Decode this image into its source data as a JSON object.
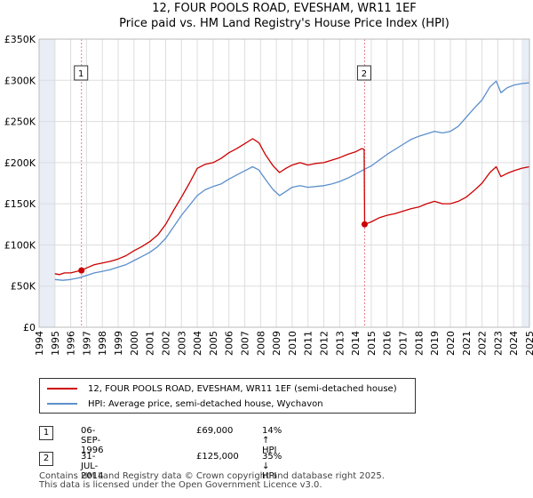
{
  "title_line1": "12, FOUR POOLS ROAD, EVESHAM, WR11 1EF",
  "title_line2": "Price paid vs. HM Land Registry's House Price Index (HPI)",
  "colors": {
    "property": "#cc0000",
    "hpi": "#5b8fcc",
    "grid": "#dddddd",
    "shade": "#e8edf6",
    "marker_line": "#e37b8c"
  },
  "chart_data": {
    "type": "line",
    "x_range": [
      1994,
      2025
    ],
    "y_range": [
      0,
      350000
    ],
    "y_ticks": [
      {
        "v": 0,
        "label": "£0"
      },
      {
        "v": 50000,
        "label": "£50K"
      },
      {
        "v": 100000,
        "label": "£100K"
      },
      {
        "v": 150000,
        "label": "£150K"
      },
      {
        "v": 200000,
        "label": "£200K"
      },
      {
        "v": 250000,
        "label": "£250K"
      },
      {
        "v": 300000,
        "label": "£300K"
      },
      {
        "v": 350000,
        "label": "£350K"
      }
    ],
    "x_ticks": [
      "1994",
      "1995",
      "1996",
      "1997",
      "1998",
      "1999",
      "2000",
      "2001",
      "2002",
      "2003",
      "2004",
      "2005",
      "2006",
      "2007",
      "2008",
      "2009",
      "2010",
      "2011",
      "2012",
      "2013",
      "2014",
      "2015",
      "2016",
      "2017",
      "2018",
      "2019",
      "2020",
      "2021",
      "2022",
      "2023",
      "2024",
      "2025"
    ],
    "shaded_periods": [
      [
        1994,
        1995
      ],
      [
        2024.5,
        2025
      ]
    ],
    "annotations": [
      {
        "label": "1",
        "x": 1996.68,
        "y": 69000
      },
      {
        "label": "2",
        "x": 2014.58,
        "y": 125000
      }
    ],
    "series": [
      {
        "name": "12, FOUR POOLS ROAD, EVESHAM, WR11 1EF (semi-detached house)",
        "color": "#cc0000",
        "points": [
          [
            1995.0,
            65000
          ],
          [
            1995.3,
            64000
          ],
          [
            1995.6,
            66000
          ],
          [
            1996.0,
            66000
          ],
          [
            1996.4,
            68000
          ],
          [
            1996.68,
            69000
          ],
          [
            1997.0,
            72000
          ],
          [
            1997.5,
            76000
          ],
          [
            1998.0,
            78000
          ],
          [
            1998.5,
            80000
          ],
          [
            1999.0,
            83000
          ],
          [
            1999.5,
            87000
          ],
          [
            2000.0,
            93000
          ],
          [
            2000.5,
            98000
          ],
          [
            2001.0,
            104000
          ],
          [
            2001.5,
            112000
          ],
          [
            2002.0,
            125000
          ],
          [
            2002.5,
            142000
          ],
          [
            2003.0,
            158000
          ],
          [
            2003.5,
            175000
          ],
          [
            2004.0,
            193000
          ],
          [
            2004.5,
            198000
          ],
          [
            2005.0,
            200000
          ],
          [
            2005.5,
            205000
          ],
          [
            2006.0,
            212000
          ],
          [
            2006.5,
            217000
          ],
          [
            2007.0,
            223000
          ],
          [
            2007.5,
            229000
          ],
          [
            2007.9,
            224000
          ],
          [
            2008.3,
            210000
          ],
          [
            2008.8,
            196000
          ],
          [
            2009.2,
            188000
          ],
          [
            2009.6,
            193000
          ],
          [
            2010.0,
            197000
          ],
          [
            2010.5,
            200000
          ],
          [
            2011.0,
            197000
          ],
          [
            2011.5,
            199000
          ],
          [
            2012.0,
            200000
          ],
          [
            2012.5,
            203000
          ],
          [
            2013.0,
            206000
          ],
          [
            2013.5,
            210000
          ],
          [
            2014.0,
            213000
          ],
          [
            2014.4,
            217000
          ],
          [
            2014.55,
            216000
          ],
          [
            2014.58,
            125000
          ],
          [
            2015.0,
            128000
          ],
          [
            2015.5,
            133000
          ],
          [
            2016.0,
            136000
          ],
          [
            2016.5,
            138000
          ],
          [
            2017.0,
            141000
          ],
          [
            2017.5,
            144000
          ],
          [
            2018.0,
            146000
          ],
          [
            2018.5,
            150000
          ],
          [
            2019.0,
            153000
          ],
          [
            2019.5,
            150000
          ],
          [
            2020.0,
            150000
          ],
          [
            2020.5,
            153000
          ],
          [
            2021.0,
            158000
          ],
          [
            2021.5,
            166000
          ],
          [
            2022.0,
            175000
          ],
          [
            2022.5,
            188000
          ],
          [
            2022.9,
            195000
          ],
          [
            2023.2,
            183000
          ],
          [
            2023.6,
            187000
          ],
          [
            2024.0,
            190000
          ],
          [
            2024.5,
            193000
          ],
          [
            2025.0,
            195000
          ]
        ]
      },
      {
        "name": "HPI: Average price, semi-detached house, Wychavon",
        "color": "#5b8fcc",
        "points": [
          [
            1995.0,
            58000
          ],
          [
            1995.5,
            57000
          ],
          [
            1996.0,
            58000
          ],
          [
            1996.5,
            60000
          ],
          [
            1997.0,
            63000
          ],
          [
            1997.5,
            66000
          ],
          [
            1998.0,
            68000
          ],
          [
            1998.5,
            70000
          ],
          [
            1999.0,
            73000
          ],
          [
            1999.5,
            76000
          ],
          [
            2000.0,
            81000
          ],
          [
            2000.5,
            86000
          ],
          [
            2001.0,
            91000
          ],
          [
            2001.5,
            98000
          ],
          [
            2002.0,
            108000
          ],
          [
            2002.5,
            122000
          ],
          [
            2003.0,
            136000
          ],
          [
            2003.5,
            148000
          ],
          [
            2004.0,
            160000
          ],
          [
            2004.5,
            167000
          ],
          [
            2005.0,
            171000
          ],
          [
            2005.5,
            174000
          ],
          [
            2006.0,
            180000
          ],
          [
            2006.5,
            185000
          ],
          [
            2007.0,
            190000
          ],
          [
            2007.5,
            195000
          ],
          [
            2007.9,
            191000
          ],
          [
            2008.3,
            180000
          ],
          [
            2008.8,
            167000
          ],
          [
            2009.2,
            160000
          ],
          [
            2009.6,
            165000
          ],
          [
            2010.0,
            170000
          ],
          [
            2010.5,
            172000
          ],
          [
            2011.0,
            170000
          ],
          [
            2011.5,
            171000
          ],
          [
            2012.0,
            172000
          ],
          [
            2012.5,
            174000
          ],
          [
            2013.0,
            177000
          ],
          [
            2013.5,
            181000
          ],
          [
            2014.0,
            186000
          ],
          [
            2014.58,
            192000
          ],
          [
            2015.0,
            196000
          ],
          [
            2015.5,
            203000
          ],
          [
            2016.0,
            210000
          ],
          [
            2016.5,
            216000
          ],
          [
            2017.0,
            222000
          ],
          [
            2017.5,
            228000
          ],
          [
            2018.0,
            232000
          ],
          [
            2018.5,
            235000
          ],
          [
            2019.0,
            238000
          ],
          [
            2019.5,
            236000
          ],
          [
            2020.0,
            238000
          ],
          [
            2020.5,
            244000
          ],
          [
            2021.0,
            255000
          ],
          [
            2021.5,
            266000
          ],
          [
            2022.0,
            276000
          ],
          [
            2022.5,
            292000
          ],
          [
            2022.9,
            299000
          ],
          [
            2023.2,
            285000
          ],
          [
            2023.6,
            291000
          ],
          [
            2024.0,
            294000
          ],
          [
            2024.5,
            296000
          ],
          [
            2025.0,
            297000
          ]
        ]
      }
    ]
  },
  "transactions": [
    {
      "num": "1",
      "date": "06-SEP-1996",
      "price": "£69,000",
      "hpi": "14% ↑ HPI"
    },
    {
      "num": "2",
      "date": "31-JUL-2014",
      "price": "£125,000",
      "hpi": "35% ↓ HPI"
    }
  ],
  "footer_line1": "Contains HM Land Registry data © Crown copyright and database right 2025.",
  "footer_line2": "This data is licensed under the Open Government Licence v3.0."
}
